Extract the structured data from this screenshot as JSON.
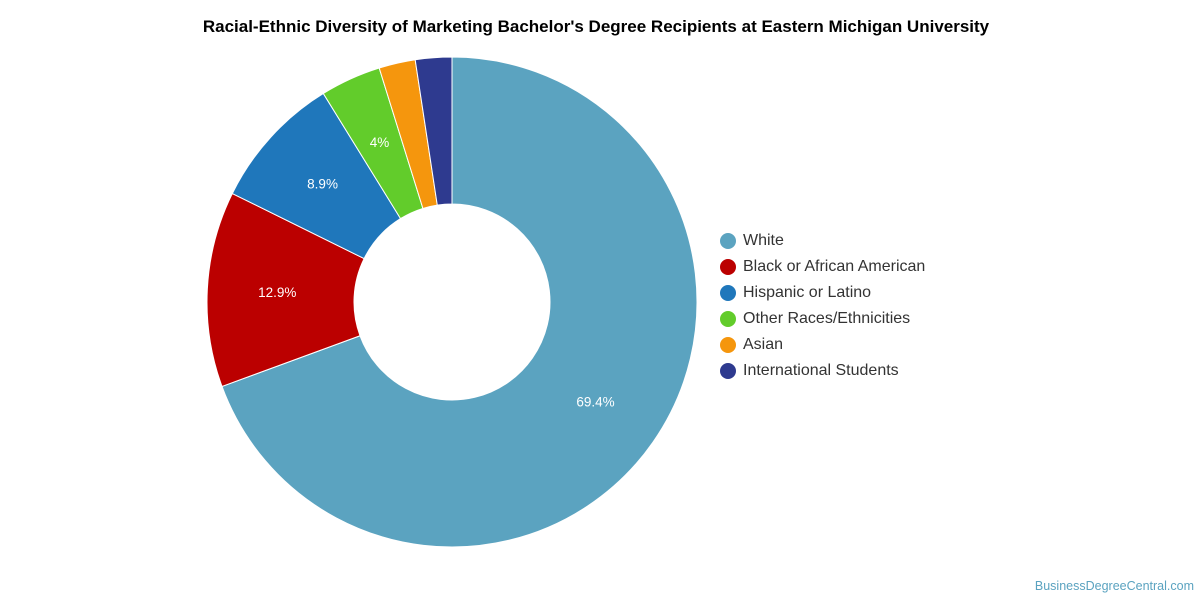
{
  "chart_data": {
    "type": "pie",
    "variant": "donut",
    "title": "Racial-Ethnic Diversity of Marketing Bachelor's Degree Recipients at Eastern Michigan University",
    "unit": "%",
    "legend_position": "right",
    "slices": [
      {
        "name": "White",
        "value": 69.4,
        "label": "69.4%",
        "color": "#5ba3c0"
      },
      {
        "name": "Black or African American",
        "value": 12.9,
        "label": "12.9%",
        "color": "#bb0000"
      },
      {
        "name": "Hispanic or Latino",
        "value": 8.9,
        "label": "8.9%",
        "color": "#1f77bb"
      },
      {
        "name": "Other Races/Ethnicities",
        "value": 4.0,
        "label": "4%",
        "color": "#62cc2b"
      },
      {
        "name": "Asian",
        "value": 2.4,
        "label": "",
        "color": "#f5960d"
      },
      {
        "name": "International Students",
        "value": 2.4,
        "label": "",
        "color": "#2e3a8f"
      }
    ]
  },
  "watermark": "BusinessDegreeCentral.com"
}
